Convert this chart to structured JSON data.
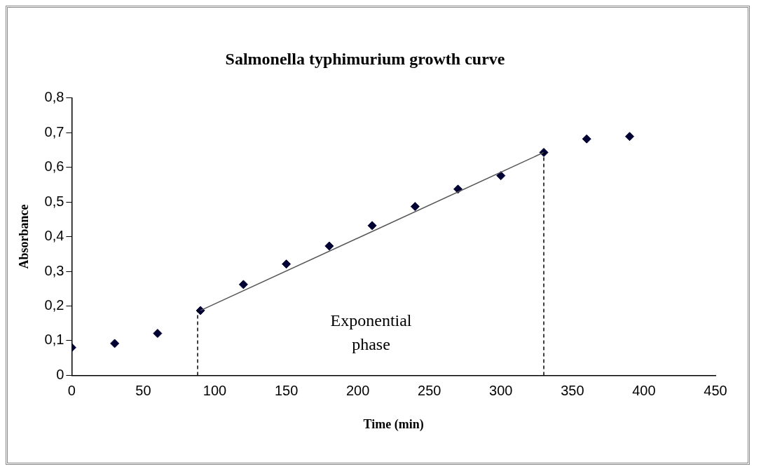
{
  "chart_data": {
    "type": "scatter",
    "title": "Salmonella typhimurium growth curve",
    "xlabel": "Time (min)",
    "ylabel": "Absorbance",
    "xlim": [
      0,
      450
    ],
    "xticks": [
      0,
      50,
      100,
      150,
      200,
      250,
      300,
      350,
      400,
      450
    ],
    "ylim": [
      0,
      0.8
    ],
    "yticks": [
      0,
      {
        "value": 0.1,
        "label": "0,1"
      },
      {
        "value": 0.2,
        "label": "0,2"
      },
      {
        "value": 0.3,
        "label": "0,3"
      },
      {
        "value": 0.4,
        "label": "0,4"
      },
      {
        "value": 0.5,
        "label": "0,5"
      },
      {
        "value": 0.6,
        "label": "0,6"
      },
      {
        "value": 0.7,
        "label": "0,7"
      },
      {
        "value": 0.8,
        "label": "0,8"
      }
    ],
    "grid": false,
    "legend": false,
    "series": [
      {
        "type": "scatter",
        "marker": "diamond",
        "color": "#000033",
        "x": [
          0,
          30,
          60,
          90,
          120,
          150,
          180,
          210,
          240,
          270,
          300,
          330,
          360,
          390
        ],
        "values": [
          0.08,
          0.092,
          0.121,
          0.187,
          0.262,
          0.321,
          0.373,
          0.432,
          0.487,
          0.537,
          0.576,
          0.643,
          0.682,
          0.689
        ]
      },
      {
        "type": "line",
        "marker": "none",
        "color": "#555555",
        "line_style": "solid",
        "x": [
          90,
          330
        ],
        "values": [
          0.187,
          0.643
        ]
      },
      {
        "type": "line",
        "marker": "none",
        "color": "#000000",
        "line_style": "dashed",
        "x": [
          88,
          88
        ],
        "values": [
          0,
          0.187
        ]
      },
      {
        "type": "line",
        "marker": "none",
        "color": "#000000",
        "line_style": "dashed",
        "x": [
          330,
          330
        ],
        "values": [
          0,
          0.643
        ]
      }
    ],
    "annotations": [
      "Exponential phase"
    ]
  }
}
